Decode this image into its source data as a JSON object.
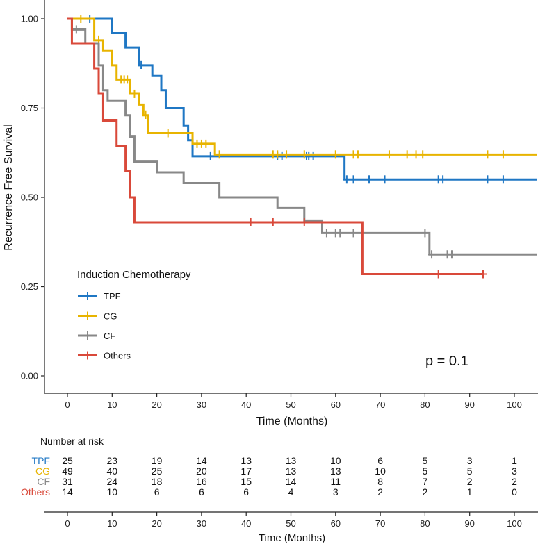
{
  "chart_data": {
    "type": "line",
    "subtype": "kaplan-meier",
    "title": "",
    "xlabel": "Time (Months)",
    "ylabel": "Recurrence Free Survival",
    "xlim": [
      -5,
      105
    ],
    "ylim": [
      0,
      1
    ],
    "x_ticks": [
      0,
      10,
      20,
      30,
      40,
      50,
      60,
      70,
      80,
      90,
      100
    ],
    "y_ticks": [
      "0.00",
      "0.25",
      "0.50",
      "0.75",
      "1.00"
    ],
    "legend": {
      "title": "Induction Chemotherapy",
      "position": "left-lower-middle",
      "entries": [
        "TPF",
        "CG",
        "CF",
        "Others"
      ]
    },
    "annotation": "p = 0.1",
    "series": [
      {
        "name": "TPF",
        "color": "#1f77c4",
        "steps": [
          [
            0,
            1.0
          ],
          [
            10,
            0.96
          ],
          [
            13,
            0.92
          ],
          [
            16,
            0.87
          ],
          [
            19,
            0.84
          ],
          [
            21,
            0.8
          ],
          [
            22,
            0.75
          ],
          [
            26,
            0.7
          ],
          [
            27,
            0.66
          ],
          [
            28,
            0.615
          ],
          [
            62,
            0.55
          ],
          [
            105,
            0.55
          ]
        ],
        "censors": [
          [
            5,
            1.0
          ],
          [
            16.5,
            0.87
          ],
          [
            32,
            0.615
          ],
          [
            47,
            0.615
          ],
          [
            48,
            0.615
          ],
          [
            53.5,
            0.615
          ],
          [
            54,
            0.615
          ],
          [
            55,
            0.615
          ],
          [
            62.5,
            0.55
          ],
          [
            64,
            0.55
          ],
          [
            67.5,
            0.55
          ],
          [
            71,
            0.55
          ],
          [
            83,
            0.55
          ],
          [
            84,
            0.55
          ],
          [
            94,
            0.55
          ],
          [
            97.5,
            0.55
          ]
        ]
      },
      {
        "name": "CG",
        "color": "#e8b400",
        "steps": [
          [
            0,
            1.0
          ],
          [
            6,
            0.94
          ],
          [
            8,
            0.91
          ],
          [
            10,
            0.87
          ],
          [
            11,
            0.83
          ],
          [
            14,
            0.79
          ],
          [
            16,
            0.76
          ],
          [
            17,
            0.73
          ],
          [
            18,
            0.68
          ],
          [
            28,
            0.65
          ],
          [
            33,
            0.62
          ],
          [
            105,
            0.62
          ]
        ],
        "censors": [
          [
            3,
            1.0
          ],
          [
            7,
            0.94
          ],
          [
            12,
            0.83
          ],
          [
            12.7,
            0.83
          ],
          [
            13.4,
            0.83
          ],
          [
            15,
            0.79
          ],
          [
            17.5,
            0.73
          ],
          [
            22.5,
            0.68
          ],
          [
            29,
            0.65
          ],
          [
            30,
            0.65
          ],
          [
            31,
            0.65
          ],
          [
            34,
            0.62
          ],
          [
            46,
            0.62
          ],
          [
            47,
            0.62
          ],
          [
            49,
            0.62
          ],
          [
            53,
            0.62
          ],
          [
            60,
            0.62
          ],
          [
            64,
            0.62
          ],
          [
            65,
            0.62
          ],
          [
            72,
            0.62
          ],
          [
            76,
            0.62
          ],
          [
            78,
            0.62
          ],
          [
            79.5,
            0.62
          ],
          [
            94,
            0.62
          ],
          [
            97.5,
            0.62
          ]
        ]
      },
      {
        "name": "CF",
        "color": "#888888",
        "steps": [
          [
            0,
            1.0
          ],
          [
            1,
            0.97
          ],
          [
            4,
            0.93
          ],
          [
            7,
            0.87
          ],
          [
            8,
            0.8
          ],
          [
            9,
            0.77
          ],
          [
            13,
            0.73
          ],
          [
            14,
            0.67
          ],
          [
            15,
            0.6
          ],
          [
            20,
            0.57
          ],
          [
            26,
            0.54
          ],
          [
            34,
            0.5
          ],
          [
            47,
            0.47
          ],
          [
            53,
            0.435
          ],
          [
            57,
            0.4
          ],
          [
            81,
            0.34
          ],
          [
            105,
            0.34
          ]
        ],
        "censors": [
          [
            2,
            0.97
          ],
          [
            58,
            0.4
          ],
          [
            60,
            0.4
          ],
          [
            61,
            0.4
          ],
          [
            64,
            0.4
          ],
          [
            80,
            0.4
          ],
          [
            81.5,
            0.34
          ],
          [
            85,
            0.34
          ],
          [
            86,
            0.34
          ]
        ]
      },
      {
        "name": "Others",
        "color": "#d9493a",
        "steps": [
          [
            0,
            1.0
          ],
          [
            1,
            0.93
          ],
          [
            6,
            0.86
          ],
          [
            7,
            0.79
          ],
          [
            8,
            0.715
          ],
          [
            11,
            0.645
          ],
          [
            13,
            0.575
          ],
          [
            14,
            0.5
          ],
          [
            15,
            0.43
          ],
          [
            66,
            0.285
          ],
          [
            93,
            0.285
          ]
        ],
        "censors": [
          [
            41,
            0.43
          ],
          [
            46,
            0.43
          ],
          [
            53,
            0.43
          ],
          [
            83,
            0.285
          ],
          [
            93,
            0.285
          ]
        ]
      }
    ]
  },
  "risk_table": {
    "title": "Number at risk",
    "xlabel": "Time (Months)",
    "x_ticks": [
      "0",
      "10",
      "20",
      "30",
      "40",
      "50",
      "60",
      "70",
      "80",
      "90",
      "100"
    ],
    "rows": [
      {
        "name": "TPF",
        "color": "#1f77c4",
        "values": [
          "25",
          "23",
          "19",
          "14",
          "13",
          "13",
          "10",
          "6",
          "5",
          "3",
          "1"
        ]
      },
      {
        "name": "CG",
        "color": "#e8b400",
        "values": [
          "49",
          "40",
          "25",
          "20",
          "17",
          "13",
          "13",
          "10",
          "5",
          "5",
          "3"
        ]
      },
      {
        "name": "CF",
        "color": "#888888",
        "values": [
          "31",
          "24",
          "18",
          "16",
          "15",
          "14",
          "11",
          "8",
          "7",
          "2",
          "2"
        ]
      },
      {
        "name": "Others",
        "color": "#d9493a",
        "values": [
          "14",
          "10",
          "6",
          "6",
          "6",
          "4",
          "3",
          "2",
          "2",
          "1",
          "0"
        ]
      }
    ]
  }
}
